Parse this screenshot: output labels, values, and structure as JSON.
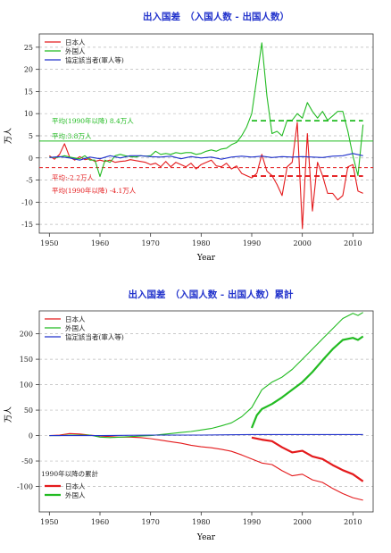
{
  "colors": {
    "japanese": "#e41a1c",
    "foreign": "#22bb22",
    "agreement": "#2233cc",
    "title": "#2233cc",
    "grid": "#b8b8b8",
    "axis": "#333333"
  },
  "chart_data": [
    {
      "type": "line",
      "title": "出入国差　（入国人数 - 出国人数）",
      "xlabel": "Year",
      "ylabel": "万人",
      "xlim": [
        1948,
        2014
      ],
      "ylim": [
        -17,
        28
      ],
      "xticks": [
        1950,
        1960,
        1970,
        1980,
        1990,
        2000,
        2010
      ],
      "yticks": [
        -15,
        -10,
        -5,
        0,
        5,
        10,
        15,
        20,
        25
      ],
      "grid": "horizontal dashed",
      "legend_position": "top-left",
      "series": [
        {
          "name": "日本人",
          "color_key": "japanese",
          "x": [
            1950,
            1951,
            1952,
            1953,
            1954,
            1955,
            1956,
            1957,
            1958,
            1959,
            1960,
            1961,
            1962,
            1963,
            1964,
            1965,
            1966,
            1967,
            1968,
            1969,
            1970,
            1971,
            1972,
            1973,
            1974,
            1975,
            1976,
            1977,
            1978,
            1979,
            1980,
            1981,
            1982,
            1983,
            1984,
            1985,
            1986,
            1987,
            1988,
            1989,
            1990,
            1991,
            1992,
            1993,
            1994,
            1995,
            1996,
            1997,
            1998,
            1999,
            2000,
            2001,
            2002,
            2003,
            2004,
            2005,
            2006,
            2007,
            2008,
            2009,
            2010,
            2011,
            2012
          ],
          "values": [
            0.5,
            -0.3,
            0.8,
            3.2,
            0.2,
            -0.5,
            0.3,
            -0.4,
            -0.2,
            -0.8,
            -0.5,
            -0.8,
            -0.5,
            -1.0,
            -0.8,
            -0.7,
            -0.4,
            -0.6,
            -0.8,
            -1.0,
            -1.5,
            -1.2,
            -2.0,
            -0.8,
            -2.0,
            -1.0,
            -1.5,
            -2.0,
            -1.2,
            -2.5,
            -1.5,
            -1.0,
            -0.5,
            -1.8,
            -2.0,
            -1.2,
            -2.5,
            -1.8,
            -3.5,
            -4.0,
            -4.5,
            -3.5,
            0.8,
            -3.0,
            -4.0,
            -6.0,
            -8.5,
            -2.0,
            -1.0,
            8.0,
            -16.0,
            5.5,
            -12.0,
            -1.0,
            -4.0,
            -8.0,
            -8.0,
            -9.5,
            -8.5,
            -2.0,
            -1.5,
            -7.5,
            -8.0
          ]
        },
        {
          "name": "外国人",
          "color_key": "foreign",
          "x": [
            1950,
            1951,
            1952,
            1953,
            1954,
            1955,
            1956,
            1957,
            1958,
            1959,
            1960,
            1961,
            1962,
            1963,
            1964,
            1965,
            1966,
            1967,
            1968,
            1969,
            1970,
            1971,
            1972,
            1973,
            1974,
            1975,
            1976,
            1977,
            1978,
            1979,
            1980,
            1981,
            1982,
            1983,
            1984,
            1985,
            1986,
            1987,
            1988,
            1989,
            1990,
            1991,
            1992,
            1993,
            1994,
            1995,
            1996,
            1997,
            1998,
            1999,
            2000,
            2001,
            2002,
            2003,
            2004,
            2005,
            2006,
            2007,
            2008,
            2009,
            2010,
            2011,
            2012
          ],
          "values": [
            0.2,
            0.1,
            0.2,
            0.5,
            0.2,
            0.0,
            -0.2,
            0.5,
            -0.5,
            -0.5,
            -4.2,
            -0.5,
            -1.0,
            0.5,
            0.8,
            0.5,
            0.3,
            0.2,
            0.5,
            0.4,
            0.5,
            1.5,
            0.8,
            1.0,
            0.8,
            1.2,
            1.0,
            1.2,
            1.2,
            0.8,
            1.0,
            1.5,
            1.8,
            1.5,
            2.0,
            2.2,
            3.0,
            3.5,
            5.0,
            7.0,
            10.0,
            18.0,
            26.0,
            14.0,
            5.5,
            6.0,
            5.0,
            8.5,
            8.5,
            10.0,
            9.0,
            12.5,
            10.5,
            9.0,
            10.5,
            8.5,
            9.5,
            10.5,
            10.5,
            6.0,
            0.5,
            -4.0,
            7.5
          ]
        },
        {
          "name": "協定該当者(軍人等)",
          "color_key": "agreement",
          "x": [
            1950,
            1952,
            1954,
            1956,
            1958,
            1960,
            1962,
            1964,
            1966,
            1968,
            1970,
            1972,
            1974,
            1976,
            1978,
            1980,
            1982,
            1984,
            1986,
            1988,
            1990,
            1992,
            1994,
            1996,
            1998,
            2000,
            2002,
            2004,
            2006,
            2008,
            2010,
            2012
          ],
          "values": [
            0.1,
            0.3,
            0.0,
            -0.5,
            0.2,
            -0.2,
            0.5,
            0.0,
            0.5,
            0.5,
            0.3,
            0.2,
            0.4,
            -0.2,
            0.3,
            0.0,
            0.2,
            -0.3,
            0.2,
            0.4,
            0.2,
            0.4,
            0.1,
            0.3,
            0.2,
            0.3,
            0.2,
            0.1,
            0.4,
            0.5,
            1.0,
            0.5
          ]
        }
      ],
      "reference_lines": [
        {
          "series": "外国人",
          "label": "平均(1990年以降) 8.4万人",
          "value": 8.4,
          "from": 1990,
          "to": 2012,
          "style": "dashed",
          "thickness": "thick"
        },
        {
          "series": "外国人",
          "label": "平均:3.8万人",
          "value": 3.8,
          "from": 1948,
          "to": 2014,
          "style": "solid",
          "thickness": "thin"
        },
        {
          "series": "日本人",
          "label": "平均:-2.2万人",
          "value": -2.2,
          "from": 1948,
          "to": 2014,
          "style": "dashed",
          "thickness": "thin"
        },
        {
          "series": "日本人",
          "label": "平均(1990年以降) -4.1万人",
          "value": -4.1,
          "from": 1990,
          "to": 2012,
          "style": "dashed",
          "thickness": "thick"
        }
      ]
    },
    {
      "type": "line",
      "title": "出入国差　（入国人数 - 出国人数）累計",
      "xlabel": "Year",
      "ylabel": "万人",
      "xlim": [
        1948,
        2014
      ],
      "ylim": [
        -150,
        245
      ],
      "xticks": [
        1950,
        1960,
        1970,
        1980,
        1990,
        2000,
        2010
      ],
      "yticks": [
        -100,
        -50,
        0,
        50,
        100,
        150,
        200
      ],
      "grid": "horizontal dashed",
      "legend_position": "top-left",
      "legend2_title": "1990年以降の累計",
      "legend2_position": "bottom-left",
      "series": [
        {
          "name": "日本人",
          "color_key": "japanese",
          "x": [
            1950,
            1952,
            1954,
            1956,
            1958,
            1960,
            1962,
            1964,
            1966,
            1968,
            1970,
            1972,
            1974,
            1976,
            1978,
            1980,
            1982,
            1984,
            1986,
            1988,
            1990,
            1992,
            1994,
            1996,
            1998,
            2000,
            2002,
            2004,
            2006,
            2008,
            2010,
            2012
          ],
          "values": [
            0,
            1,
            4,
            3,
            1,
            -1,
            -2,
            -3,
            -3,
            -4,
            -6,
            -9,
            -12,
            -15,
            -19,
            -22,
            -24,
            -27,
            -31,
            -38,
            -46,
            -54,
            -57,
            -69,
            -79,
            -76,
            -87,
            -92,
            -104,
            -114,
            -122,
            -127
          ]
        },
        {
          "name": "外国人",
          "color_key": "foreign",
          "x": [
            1950,
            1952,
            1954,
            1956,
            1958,
            1960,
            1962,
            1964,
            1966,
            1968,
            1970,
            1972,
            1974,
            1976,
            1978,
            1980,
            1982,
            1984,
            1986,
            1988,
            1990,
            1992,
            1994,
            1996,
            1998,
            2000,
            2002,
            2004,
            2006,
            2008,
            2010,
            2011,
            2012
          ],
          "values": [
            0,
            0,
            1,
            1,
            1,
            -3,
            -4,
            -3,
            -2,
            -1,
            0,
            2,
            4,
            6,
            8,
            11,
            14,
            19,
            25,
            37,
            55,
            90,
            105,
            115,
            130,
            150,
            170,
            190,
            210,
            230,
            240,
            236,
            242
          ]
        },
        {
          "name": "協定該当者(軍人等)",
          "color_key": "agreement",
          "x": [
            1950,
            1960,
            1970,
            1980,
            1990,
            2000,
            2010,
            2012
          ],
          "values": [
            0,
            0,
            1,
            1,
            2,
            2,
            2,
            2
          ]
        },
        {
          "name": "日本人",
          "legend_group": 2,
          "thick": true,
          "color_key": "japanese",
          "x": [
            1990,
            1992,
            1994,
            1996,
            1998,
            2000,
            2002,
            2004,
            2006,
            2008,
            2010,
            2012
          ],
          "values": [
            -4,
            -8,
            -11,
            -23,
            -33,
            -30,
            -41,
            -46,
            -58,
            -68,
            -76,
            -90
          ]
        },
        {
          "name": "外国人",
          "legend_group": 2,
          "thick": true,
          "color_key": "foreign",
          "x": [
            1990,
            1991,
            1992,
            1994,
            1996,
            1998,
            2000,
            2002,
            2004,
            2006,
            2008,
            2010,
            2011,
            2012
          ],
          "values": [
            15,
            40,
            52,
            62,
            75,
            90,
            105,
            125,
            148,
            170,
            188,
            192,
            188,
            195
          ]
        }
      ]
    }
  ]
}
